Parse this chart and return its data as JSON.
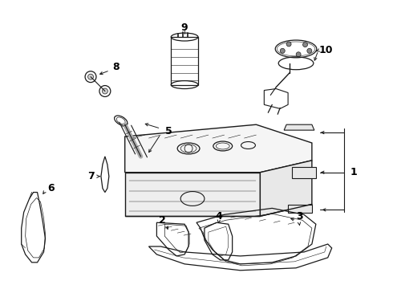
{
  "bg_color": "#ffffff",
  "line_color": "#1a1a1a",
  "figsize": [
    4.9,
    3.6
  ],
  "dpi": 100,
  "label_fontsize": 9
}
